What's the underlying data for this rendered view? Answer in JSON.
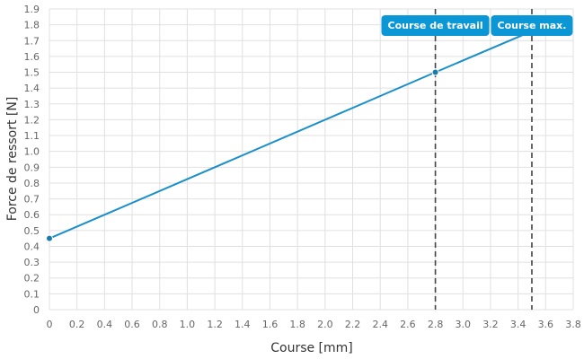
{
  "chart_data": {
    "type": "line",
    "title": "",
    "xlabel": "Course [mm]",
    "ylabel": "Force de ressort [N]",
    "xlim": [
      0,
      3.8
    ],
    "ylim": [
      0,
      1.9
    ],
    "x_ticks": [
      "0",
      "0.2",
      "0.4",
      "0.6",
      "0.8",
      "1.0",
      "1.2",
      "1.4",
      "1.6",
      "1.8",
      "2.0",
      "2.2",
      "2.4",
      "2.6",
      "2.8",
      "3.0",
      "3.2",
      "3.4",
      "3.6",
      "3.8"
    ],
    "y_ticks": [
      "0",
      "0.1",
      "0.2",
      "0.3",
      "0.4",
      "0.5",
      "0.6",
      "0.7",
      "0.8",
      "0.9",
      "1.0",
      "1.1",
      "1.2",
      "1.3",
      "1.4",
      "1.5",
      "1.6",
      "1.7",
      "1.8",
      "1.9"
    ],
    "grid": true,
    "series": [
      {
        "color": "#1a8fc9",
        "points": [
          [
            0,
            0.45
          ],
          [
            2.8,
            1.5
          ],
          [
            3.5,
            1.76
          ]
        ],
        "markers": [
          [
            0,
            0.45
          ],
          [
            2.8,
            1.5
          ]
        ]
      }
    ],
    "reference_lines": [
      {
        "x": 2.8,
        "label": "Course de travail"
      },
      {
        "x": 3.5,
        "label": "Course max."
      }
    ],
    "colors": {
      "line": "#1a8fc9",
      "marker": "#1a7ba6",
      "callout": "#0b96d6",
      "reference_line": "#444444",
      "grid": "#e0e0e0"
    }
  }
}
